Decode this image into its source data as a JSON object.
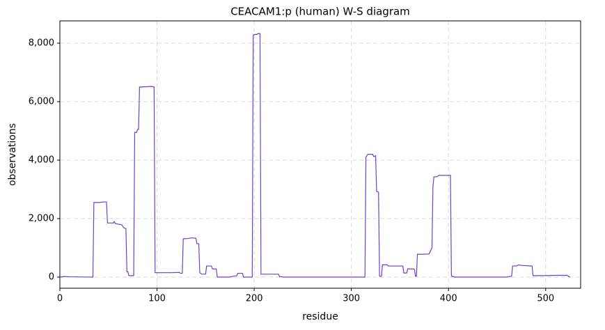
{
  "chart_data": {
    "type": "line",
    "title": "CEACAM1:p (human) W-S diagram",
    "x_label": "residue",
    "y_label": "observations",
    "xlim": [
      0,
      536
    ],
    "ylim": [
      -381,
      8762
    ],
    "xticks": [
      0,
      100,
      200,
      300,
      400,
      500
    ],
    "yticks": [
      0,
      {
        "value": 2000,
        "label": "2,000"
      },
      {
        "value": 4000,
        "label": "4,000"
      },
      {
        "value": 6000,
        "label": "6,000"
      },
      {
        "value": 8000,
        "label": "8,000"
      }
    ],
    "grid": true,
    "series": [
      {
        "color": "#6a3fd6",
        "x": [
          0,
          5,
          10,
          34,
          35,
          40,
          45,
          48,
          49,
          55,
          56,
          57,
          62,
          64,
          66,
          68,
          69,
          70,
          71,
          76,
          77,
          79,
          80,
          81,
          82,
          95,
          97,
          98,
          110,
          115,
          123,
          124,
          126,
          127,
          132,
          135,
          140,
          141,
          143,
          144,
          146,
          150,
          151,
          156,
          157,
          161,
          162,
          175,
          180,
          182,
          183,
          188,
          189,
          198,
          199,
          201,
          203,
          204,
          206,
          207,
          225,
          226,
          230,
          314,
          315,
          317,
          322,
          323,
          325,
          326,
          328,
          329,
          331,
          332,
          337,
          338,
          353,
          354,
          357,
          358,
          364,
          365,
          366,
          367,
          368,
          372,
          380,
          383,
          384,
          385,
          388,
          390,
          402,
          403,
          406,
          460,
          465,
          466,
          470,
          472,
          475,
          486,
          487,
          500,
          510,
          522,
          525
        ],
        "values": [
          0,
          20,
          10,
          0,
          2550,
          2550,
          2570,
          2570,
          1850,
          1850,
          1900,
          1830,
          1800,
          1780,
          1680,
          1660,
          180,
          180,
          50,
          50,
          4950,
          4950,
          5050,
          5050,
          6500,
          6520,
          6500,
          150,
          150,
          150,
          160,
          130,
          130,
          1310,
          1320,
          1340,
          1330,
          1150,
          1140,
          150,
          100,
          100,
          380,
          380,
          280,
          280,
          0,
          0,
          40,
          40,
          130,
          130,
          0,
          0,
          8280,
          8300,
          8300,
          8330,
          8330,
          100,
          100,
          20,
          0,
          0,
          4100,
          4200,
          4200,
          4120,
          4150,
          2930,
          2900,
          30,
          30,
          420,
          420,
          380,
          380,
          140,
          140,
          280,
          280,
          260,
          30,
          30,
          780,
          780,
          790,
          1000,
          3100,
          3430,
          3430,
          3480,
          3480,
          40,
          0,
          0,
          30,
          380,
          380,
          420,
          400,
          380,
          50,
          50,
          60,
          60,
          0
        ]
      }
    ]
  }
}
